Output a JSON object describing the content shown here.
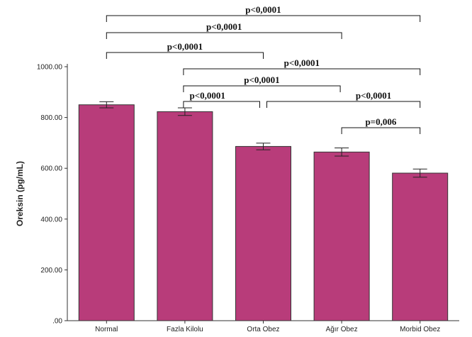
{
  "chart_data": {
    "type": "bar",
    "categories": [
      "Normal",
      "Fazla Kilolu",
      "Orta Obez",
      "Ağır Obez",
      "Morbid Obez"
    ],
    "values": [
      850,
      823,
      686,
      664,
      581
    ],
    "error_low": [
      838,
      808,
      673,
      648,
      565
    ],
    "error_high": [
      862,
      838,
      699,
      680,
      597
    ],
    "ylabel": "Oreksin (pg/mL)",
    "ylim": [
      0,
      1000
    ],
    "yticks": [
      0,
      200,
      400,
      600,
      800,
      1000
    ],
    "ytick_labels": [
      ".00",
      "200.00",
      "400.00",
      "600.00",
      "800.00",
      "1000.00"
    ],
    "bar_color": "#B83C7A",
    "comparisons": [
      {
        "from": "Normal",
        "to": "Morbid Obez",
        "label": "p<0,0001"
      },
      {
        "from": "Normal",
        "to": "Ağır Obez",
        "label": "p<0,0001"
      },
      {
        "from": "Normal",
        "to": "Orta Obez",
        "label": "p<0,0001"
      },
      {
        "from": "Fazla Kilolu",
        "to": "Morbid Obez",
        "label": "p<0,0001"
      },
      {
        "from": "Fazla Kilolu",
        "to": "Ağır Obez",
        "label": "p<0,0001"
      },
      {
        "from": "Fazla Kilolu",
        "to": "Orta Obez",
        "label": "p<0,0001"
      },
      {
        "from": "Orta Obez",
        "to": "Morbid Obez",
        "label": "p<0,0001"
      },
      {
        "from": "Ağır Obez",
        "to": "Morbid Obez",
        "label": "p=0,006"
      }
    ]
  }
}
